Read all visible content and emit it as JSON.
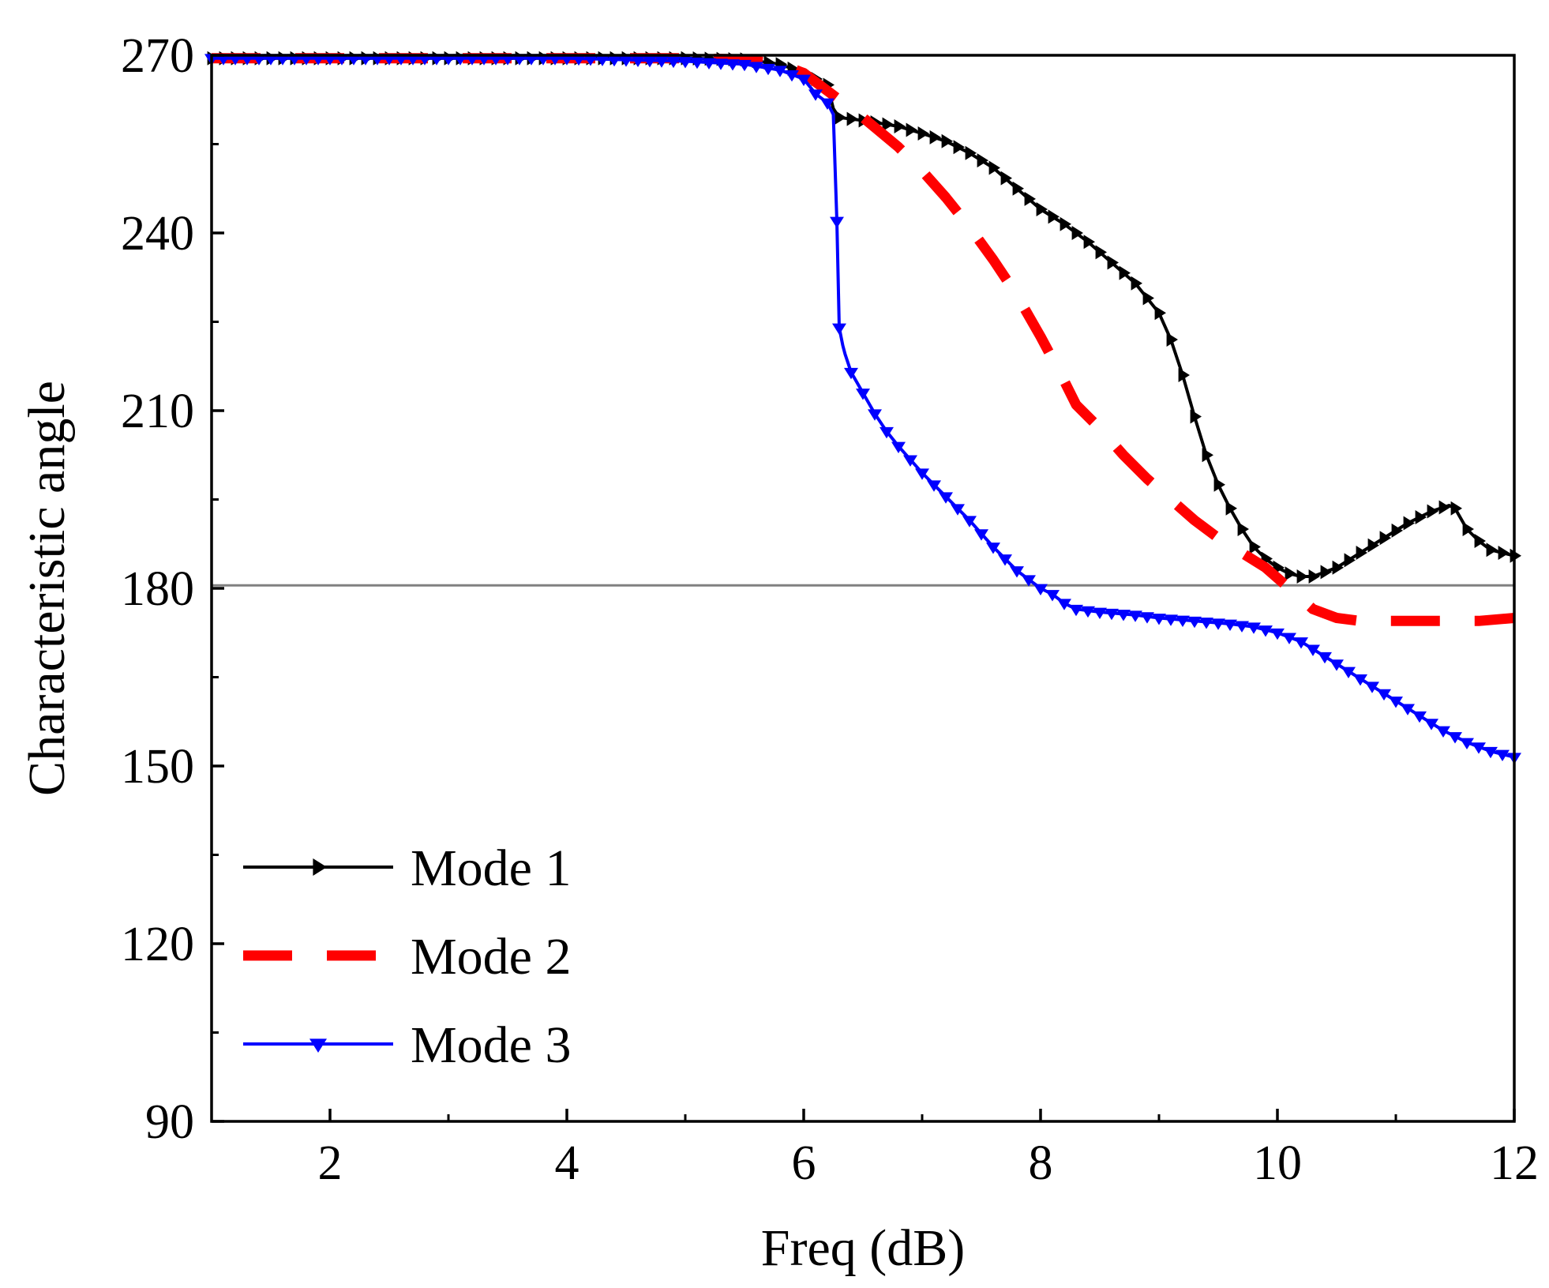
{
  "chart_data": {
    "type": "line",
    "title": "",
    "xlabel": "Freq (dB)",
    "ylabel": "Characteristic angle",
    "xlim": [
      1,
      12
    ],
    "ylim": [
      90,
      270
    ],
    "xticks": [
      2,
      4,
      6,
      8,
      10,
      12
    ],
    "xtick_labels": [
      "2",
      "4",
      "6",
      "8",
      "10",
      "12"
    ],
    "yticks": [
      90,
      120,
      150,
      180,
      210,
      240,
      270
    ],
    "ytick_labels": [
      "90",
      "120",
      "150",
      "180",
      "210",
      "240",
      "270"
    ],
    "reference_line_y": 180.5,
    "grid": false,
    "legend_position": "bottom-left",
    "series": [
      {
        "name": "Mode 1",
        "label": "Mode 1",
        "color": "#000000",
        "line_style": "solid",
        "marker": "triangle-right",
        "x": [
          1.0,
          2.0,
          3.0,
          4.0,
          5.0,
          5.5,
          5.8,
          6.0,
          6.1,
          6.2,
          6.25,
          6.3,
          6.5,
          6.8,
          7.0,
          7.2,
          7.4,
          7.6,
          7.8,
          8.0,
          8.2,
          8.4,
          8.6,
          8.8,
          9.0,
          9.1,
          9.2,
          9.3,
          9.4,
          9.5,
          9.6,
          9.7,
          9.8,
          9.9,
          10.0,
          10.1,
          10.2,
          10.3,
          10.5,
          10.7,
          10.9,
          11.1,
          11.3,
          11.45,
          11.5,
          11.6,
          11.7,
          11.8,
          11.9,
          12.0
        ],
        "y": [
          269.5,
          269.5,
          269.5,
          269.5,
          269.5,
          269.3,
          268.5,
          267.0,
          266.0,
          265.0,
          261.0,
          259.5,
          259.0,
          258.0,
          256.8,
          255.5,
          253.5,
          251.0,
          247.5,
          244.0,
          241.5,
          238.5,
          235.0,
          231.5,
          226.5,
          222.0,
          216.0,
          209.0,
          202.5,
          197.5,
          193.5,
          190.0,
          187.0,
          185.0,
          183.5,
          182.5,
          182.0,
          182.0,
          183.5,
          186.0,
          188.5,
          191.0,
          193.0,
          194.0,
          193.5,
          190.0,
          188.0,
          186.5,
          186.0,
          185.5
        ]
      },
      {
        "name": "Mode 2",
        "label": "Mode 2",
        "color": "#ff0000",
        "line_style": "dashed",
        "marker": "none",
        "x": [
          1.0,
          2.0,
          3.0,
          4.0,
          5.0,
          5.5,
          5.8,
          6.0,
          6.2,
          6.5,
          6.8,
          7.0,
          7.2,
          7.4,
          7.6,
          7.8,
          8.0,
          8.2,
          8.3,
          8.4,
          8.5,
          8.7,
          8.9,
          9.1,
          9.3,
          9.5,
          9.7,
          9.9,
          10.1,
          10.3,
          10.5,
          10.7,
          10.9,
          11.1,
          11.3,
          11.5,
          11.7,
          12.0
        ],
        "y": [
          269.5,
          269.5,
          269.5,
          269.5,
          269.5,
          269.3,
          268.5,
          267.0,
          264.0,
          259.5,
          254.5,
          250.5,
          246.0,
          241.0,
          235.5,
          229.5,
          222.5,
          215.0,
          211.0,
          209.0,
          207.0,
          202.5,
          198.5,
          195.0,
          191.5,
          188.5,
          186.0,
          183.5,
          180.0,
          176.5,
          175.0,
          174.5,
          174.5,
          174.5,
          174.5,
          174.5,
          174.5,
          175.0
        ]
      },
      {
        "name": "Mode 3",
        "label": "Mode 3",
        "color": "#0000ff",
        "line_style": "solid",
        "marker": "triangle-down",
        "x": [
          1.0,
          2.0,
          3.0,
          4.0,
          5.0,
          5.5,
          5.8,
          6.0,
          6.1,
          6.2,
          6.25,
          6.28,
          6.3,
          6.33,
          6.35,
          6.4,
          6.5,
          6.6,
          6.7,
          6.8,
          7.0,
          7.2,
          7.4,
          7.6,
          7.8,
          8.0,
          8.1,
          8.2,
          8.3,
          8.5,
          8.8,
          9.0,
          9.3,
          9.6,
          9.8,
          10.0,
          10.2,
          10.4,
          10.6,
          10.8,
          11.0,
          11.2,
          11.4,
          11.6,
          11.8,
          12.0
        ],
        "y": [
          269.5,
          269.5,
          269.5,
          269.5,
          269.0,
          268.5,
          267.5,
          266.0,
          263.5,
          262.0,
          260.0,
          242.0,
          224.0,
          221.0,
          219.5,
          216.5,
          213.0,
          209.5,
          206.5,
          204.0,
          199.5,
          195.5,
          191.5,
          187.0,
          183.0,
          180.0,
          179.0,
          177.5,
          176.5,
          176.0,
          175.5,
          175.0,
          174.5,
          174.0,
          173.5,
          172.5,
          171.0,
          168.5,
          166.0,
          163.5,
          161.0,
          158.5,
          156.0,
          154.0,
          152.5,
          151.5
        ]
      }
    ]
  }
}
